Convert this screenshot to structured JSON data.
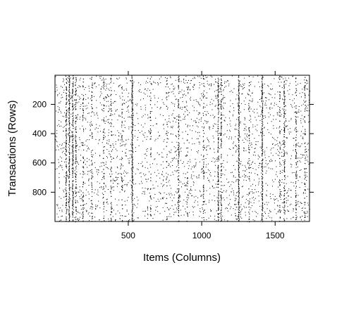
{
  "chart_data": {
    "type": "heatmap",
    "title": "",
    "xlabel": "Items (Columns)",
    "ylabel": "Transactions (Rows)",
    "xlim": [
      1,
      1734
    ],
    "ylim": [
      1,
      1000
    ],
    "y_reversed": true,
    "x_ticks": [
      500,
      1000,
      1500
    ],
    "x_tick_labels": [
      "500",
      "1000",
      "1500"
    ],
    "y_ticks": [
      200,
      400,
      600,
      800
    ],
    "y_tick_labels": [
      "200",
      "400",
      "600",
      "800"
    ],
    "cell_color": "#000000",
    "background_color": "#ffffff",
    "frequent_item_columns": [
      {
        "item": 75,
        "density": 0.6
      },
      {
        "item": 95,
        "density": 0.85
      },
      {
        "item": 120,
        "density": 0.7
      },
      {
        "item": 140,
        "density": 0.55
      },
      {
        "item": 190,
        "density": 0.3
      },
      {
        "item": 250,
        "density": 0.25
      },
      {
        "item": 330,
        "density": 0.3
      },
      {
        "item": 380,
        "density": 0.25
      },
      {
        "item": 455,
        "density": 0.2
      },
      {
        "item": 525,
        "density": 0.95
      },
      {
        "item": 650,
        "density": 0.2
      },
      {
        "item": 760,
        "density": 0.2
      },
      {
        "item": 840,
        "density": 0.5
      },
      {
        "item": 900,
        "density": 0.2
      },
      {
        "item": 1010,
        "density": 0.3
      },
      {
        "item": 1110,
        "density": 0.6
      },
      {
        "item": 1130,
        "density": 0.55
      },
      {
        "item": 1250,
        "density": 0.95
      },
      {
        "item": 1320,
        "density": 0.3
      },
      {
        "item": 1410,
        "density": 0.85
      },
      {
        "item": 1530,
        "density": 0.3
      },
      {
        "item": 1560,
        "density": 0.5
      },
      {
        "item": 1640,
        "density": 0.4
      },
      {
        "item": 1700,
        "density": 0.3
      }
    ]
  }
}
